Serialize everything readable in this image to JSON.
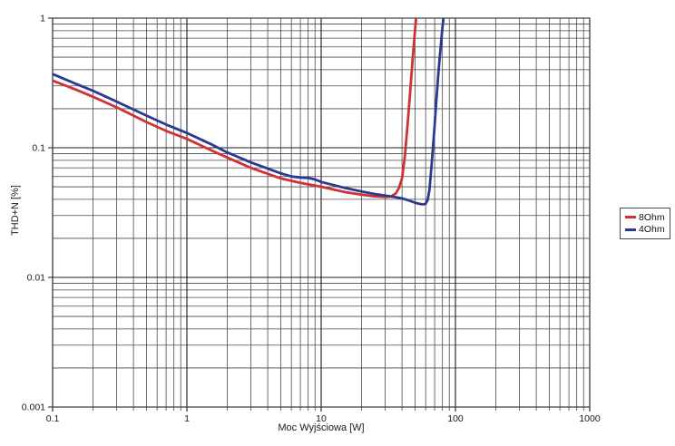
{
  "chart_data": {
    "type": "line",
    "title": "",
    "xlabel": "Moc Wyjściowa [W]",
    "ylabel": "THD+N [%]",
    "x_scale": "log",
    "y_scale": "log",
    "xlim": [
      0.1,
      1000
    ],
    "ylim": [
      0.001,
      1
    ],
    "x_ticks": [
      {
        "value": 0.1,
        "label": "0.1"
      },
      {
        "value": 1,
        "label": "1"
      },
      {
        "value": 10,
        "label": "10"
      },
      {
        "value": 100,
        "label": "100"
      },
      {
        "value": 1000,
        "label": "1000"
      }
    ],
    "y_ticks": [
      {
        "value": 1,
        "label": "1"
      },
      {
        "value": 0.1,
        "label": "0.1"
      },
      {
        "value": 0.01,
        "label": "0.01"
      },
      {
        "value": 0.001,
        "label": "0.001"
      }
    ],
    "grid": {
      "major": true,
      "minor": true,
      "major_color": "#1c1c1c",
      "minor_color": "#4a4a4a",
      "frame_color": "#3a3a3a"
    },
    "legend_position": "outside-right",
    "text_color": "#1a1a1a",
    "series": [
      {
        "name": "8Ohm",
        "color": "#cf3235",
        "points": [
          [
            0.1,
            0.33
          ],
          [
            0.15,
            0.28
          ],
          [
            0.2,
            0.247
          ],
          [
            0.3,
            0.205
          ],
          [
            0.5,
            0.158
          ],
          [
            0.7,
            0.135
          ],
          [
            1,
            0.117
          ],
          [
            1.5,
            0.096
          ],
          [
            2,
            0.084
          ],
          [
            3,
            0.07
          ],
          [
            5,
            0.058
          ],
          [
            7,
            0.0535
          ],
          [
            10,
            0.05
          ],
          [
            15,
            0.0455
          ],
          [
            20,
            0.0435
          ],
          [
            25,
            0.0422
          ],
          [
            30,
            0.0418
          ],
          [
            33,
            0.042
          ],
          [
            36,
            0.0445
          ],
          [
            38,
            0.049
          ],
          [
            40,
            0.058
          ],
          [
            42,
            0.085
          ],
          [
            44,
            0.15
          ],
          [
            46,
            0.27
          ],
          [
            48,
            0.48
          ],
          [
            50,
            0.8
          ],
          [
            51,
            1.02
          ]
        ]
      },
      {
        "name": "4Ohm",
        "color": "#2b3990",
        "points": [
          [
            0.1,
            0.37
          ],
          [
            0.15,
            0.31
          ],
          [
            0.2,
            0.275
          ],
          [
            0.3,
            0.227
          ],
          [
            0.5,
            0.177
          ],
          [
            0.7,
            0.151
          ],
          [
            1,
            0.13
          ],
          [
            1.5,
            0.107
          ],
          [
            2,
            0.092
          ],
          [
            3,
            0.077
          ],
          [
            5,
            0.0635
          ],
          [
            6,
            0.06
          ],
          [
            7,
            0.059
          ],
          [
            8,
            0.0585
          ],
          [
            9,
            0.057
          ],
          [
            10,
            0.0545
          ],
          [
            15,
            0.049
          ],
          [
            20,
            0.046
          ],
          [
            25,
            0.044
          ],
          [
            30,
            0.0428
          ],
          [
            35,
            0.0417
          ],
          [
            40,
            0.0407
          ],
          [
            45,
            0.0392
          ],
          [
            50,
            0.0377
          ],
          [
            55,
            0.0368
          ],
          [
            58,
            0.0366
          ],
          [
            60,
            0.037
          ],
          [
            62,
            0.0395
          ],
          [
            64,
            0.047
          ],
          [
            66,
            0.068
          ],
          [
            68,
            0.1
          ],
          [
            70,
            0.15
          ],
          [
            72,
            0.23
          ],
          [
            75,
            0.4
          ],
          [
            78,
            0.63
          ],
          [
            80,
            0.85
          ],
          [
            81.5,
            1.02
          ]
        ]
      }
    ]
  }
}
